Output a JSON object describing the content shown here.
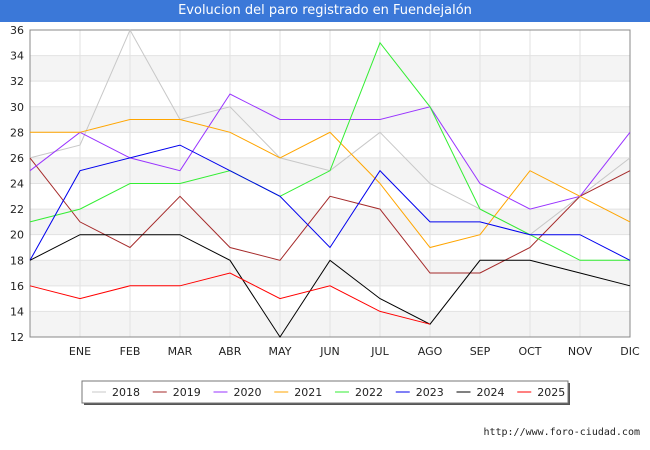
{
  "title": "Evolucion del paro registrado en Fuendejalón",
  "footer": "http://www.foro-ciudad.com",
  "chart_data": {
    "type": "line",
    "title": "Evolucion del paro registrado en Fuendejalón",
    "categories": [
      "",
      "ENE",
      "FEB",
      "MAR",
      "ABR",
      "MAY",
      "JUN",
      "JUL",
      "AGO",
      "SEP",
      "OCT",
      "NOV",
      "DIC"
    ],
    "ylim": [
      12,
      36
    ],
    "yticks": [
      12,
      14,
      16,
      18,
      20,
      22,
      24,
      26,
      28,
      30,
      32,
      34,
      36
    ],
    "grid": true,
    "legend_position": "bottom",
    "series": [
      {
        "name": "2018",
        "color": "#c8c8c8",
        "values": [
          26,
          27,
          36,
          29,
          30,
          26,
          25,
          28,
          24,
          22,
          20,
          23,
          26
        ]
      },
      {
        "name": "2019",
        "color": "#a52a2a",
        "values": [
          26,
          21,
          19,
          23,
          19,
          18,
          23,
          22,
          17,
          17,
          19,
          23,
          25
        ]
      },
      {
        "name": "2020",
        "color": "#9933ff",
        "values": [
          25,
          28,
          26,
          25,
          31,
          29,
          29,
          29,
          30,
          24,
          22,
          23,
          28
        ]
      },
      {
        "name": "2021",
        "color": "#ffa500",
        "values": [
          28,
          28,
          29,
          29,
          28,
          26,
          28,
          24,
          19,
          20,
          25,
          23,
          21
        ]
      },
      {
        "name": "2022",
        "color": "#33ee33",
        "values": [
          21,
          22,
          24,
          24,
          25,
          23,
          25,
          35,
          30,
          22,
          20,
          18,
          18
        ]
      },
      {
        "name": "2023",
        "color": "#0000ee",
        "values": [
          18,
          25,
          26,
          27,
          25,
          23,
          19,
          25,
          21,
          21,
          20,
          20,
          18
        ]
      },
      {
        "name": "2024",
        "color": "#000000",
        "values": [
          18,
          20,
          20,
          20,
          18,
          12,
          18,
          15,
          13,
          18,
          18,
          17,
          16
        ]
      },
      {
        "name": "2025",
        "color": "#ff0000",
        "values": [
          16,
          15,
          16,
          16,
          17,
          15,
          16,
          14,
          13,
          null,
          null,
          null,
          null
        ]
      }
    ]
  }
}
